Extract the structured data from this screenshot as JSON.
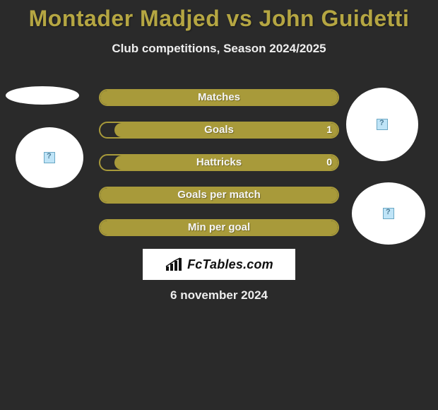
{
  "title": "Montader Madjed vs John Guidetti",
  "subtitle": "Club competitions, Season 2024/2025",
  "date": "6 november 2024",
  "logo_text": "FcTables.com",
  "colors": {
    "accent": "#a89a3a",
    "title": "#b5a642",
    "bg": "#2a2a2a"
  },
  "stats": [
    {
      "label": "Matches",
      "fill": "full",
      "value_right": null
    },
    {
      "label": "Goals",
      "fill": "right",
      "right_width_pct": 94,
      "value_right": "1"
    },
    {
      "label": "Hattricks",
      "fill": "right",
      "right_width_pct": 94,
      "value_right": "0"
    },
    {
      "label": "Goals per match",
      "fill": "full",
      "value_right": null
    },
    {
      "label": "Min per goal",
      "fill": "full",
      "value_right": null
    }
  ],
  "avatars": {
    "left": {
      "has_placeholder_icon": true
    },
    "right1": {
      "has_placeholder_icon": true
    },
    "right2": {
      "has_placeholder_icon": true
    }
  }
}
